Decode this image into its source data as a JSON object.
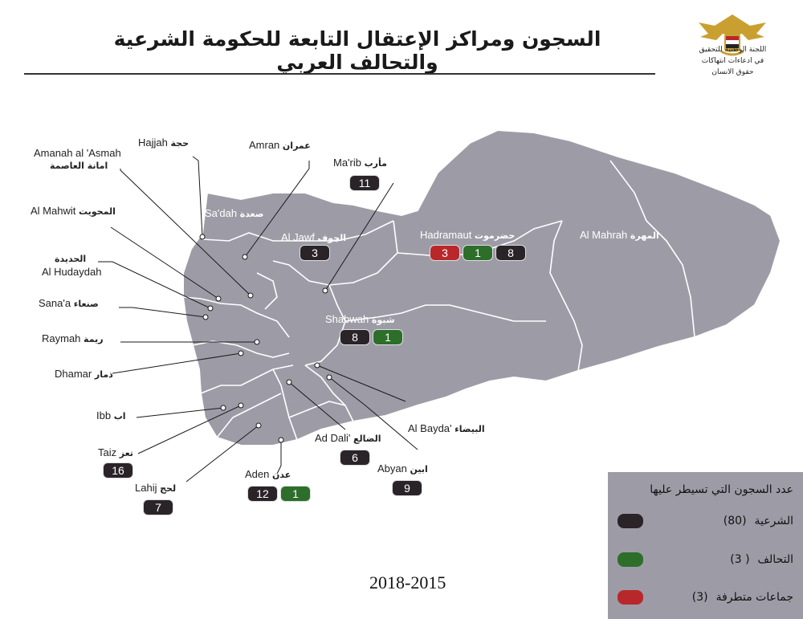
{
  "title": "السجون ومراكز الإعتقال التابعة للحكومة الشرعية والتحالف العربي",
  "org": {
    "line1": "اللجنة الوطنية للتحقيق",
    "line2": "في ادعاءات انتهاكات",
    "line3": "حقوق الانسان"
  },
  "years": "2018-2015",
  "colors": {
    "map_fill": "#9d9ca6",
    "legitimate": "#2a2428",
    "coalition": "#2c6e2a",
    "extremist": "#b8282b"
  },
  "regions": [
    {
      "en": "Hajjah",
      "ar": "حجة",
      "counts": []
    },
    {
      "en": "Amran",
      "ar": "عمران",
      "counts": []
    },
    {
      "en": "Amanah al 'Asmah",
      "ar": "امانة العاصمة",
      "counts": []
    },
    {
      "en": "Ma'rib",
      "ar": "مأرب",
      "counts": [
        {
          "v": "11",
          "t": "legitimate"
        }
      ]
    },
    {
      "en": "Sa'dah",
      "ar": "صعدة",
      "counts": []
    },
    {
      "en": "Al Mahwit",
      "ar": "المحويت",
      "counts": []
    },
    {
      "en": "Al Jawf",
      "ar": "الجوف",
      "counts": [
        {
          "v": "3",
          "t": "legitimate"
        }
      ]
    },
    {
      "en": "Hadramaut",
      "ar": "حضرموت",
      "counts": [
        {
          "v": "3",
          "t": "extremist"
        },
        {
          "v": "1",
          "t": "coalition"
        },
        {
          "v": "8",
          "t": "legitimate"
        }
      ]
    },
    {
      "en": "Al Mahrah",
      "ar": "المهرة",
      "counts": []
    },
    {
      "en": "Al Hudaydah",
      "ar": "الحديدة",
      "counts": []
    },
    {
      "en": "Sana'a",
      "ar": "صنعاء",
      "counts": []
    },
    {
      "en": "Shabwah",
      "ar": "شبوة",
      "counts": [
        {
          "v": "8",
          "t": "legitimate"
        },
        {
          "v": "1",
          "t": "coalition"
        }
      ]
    },
    {
      "en": "Raymah",
      "ar": "ريمة",
      "counts": []
    },
    {
      "en": "Dhamar",
      "ar": "ذمار",
      "counts": []
    },
    {
      "en": "Ibb",
      "ar": "اب",
      "counts": []
    },
    {
      "en": "Al Bayda'",
      "ar": "البيضاء",
      "counts": []
    },
    {
      "en": "Ad Dali'",
      "ar": "الضالع",
      "counts": [
        {
          "v": "6",
          "t": "legitimate"
        }
      ]
    },
    {
      "en": "Taiz",
      "ar": "تعز",
      "counts": [
        {
          "v": "16",
          "t": "legitimate"
        }
      ]
    },
    {
      "en": "Abyan",
      "ar": "ابين",
      "counts": [
        {
          "v": "9",
          "t": "legitimate"
        }
      ]
    },
    {
      "en": "Aden",
      "ar": "عدن",
      "counts": [
        {
          "v": "12",
          "t": "legitimate"
        },
        {
          "v": "1",
          "t": "coalition"
        }
      ]
    },
    {
      "en": "Lahij",
      "ar": "لحج",
      "counts": [
        {
          "v": "7",
          "t": "legitimate"
        }
      ]
    }
  ],
  "legend": {
    "title": "عدد السجون التي تسيطر عليها",
    "items": [
      {
        "label": "الشرعية",
        "count": "(80)",
        "t": "legitimate"
      },
      {
        "label": "التحالف",
        "count": "( 3)",
        "t": "coalition"
      },
      {
        "label": "جماعات متطرفة",
        "count": "(3)",
        "t": "extremist"
      }
    ]
  }
}
